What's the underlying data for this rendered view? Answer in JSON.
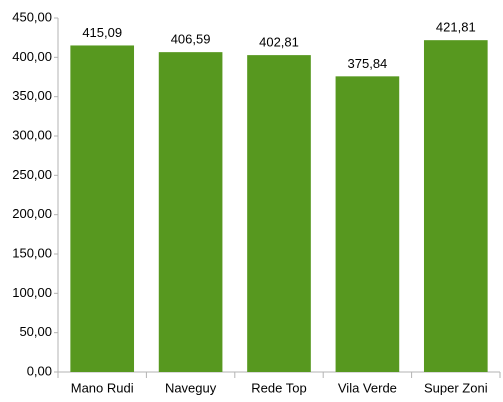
{
  "chart_data": {
    "type": "bar",
    "categories": [
      "Mano Rudi",
      "Naveguy",
      "Rede Top",
      "Vila Verde",
      "Super Zoni"
    ],
    "values": [
      415.09,
      406.59,
      402.81,
      375.84,
      421.81
    ],
    "value_labels": [
      "415,09",
      "406,59",
      "402,81",
      "375,84",
      "421,81"
    ],
    "color": "#57981f",
    "ylim": [
      0,
      450
    ],
    "yticks": [
      {
        "value": 0,
        "label": "0,00"
      },
      {
        "value": 50,
        "label": "50,00"
      },
      {
        "value": 100,
        "label": "100,00"
      },
      {
        "value": 150,
        "label": "150,00"
      },
      {
        "value": 200,
        "label": "200,00"
      },
      {
        "value": 250,
        "label": "250,00"
      },
      {
        "value": 300,
        "label": "300,00"
      },
      {
        "value": 350,
        "label": "350,00"
      },
      {
        "value": 400,
        "label": "400,00"
      },
      {
        "value": 450,
        "label": "450,00"
      }
    ],
    "grid": false
  }
}
